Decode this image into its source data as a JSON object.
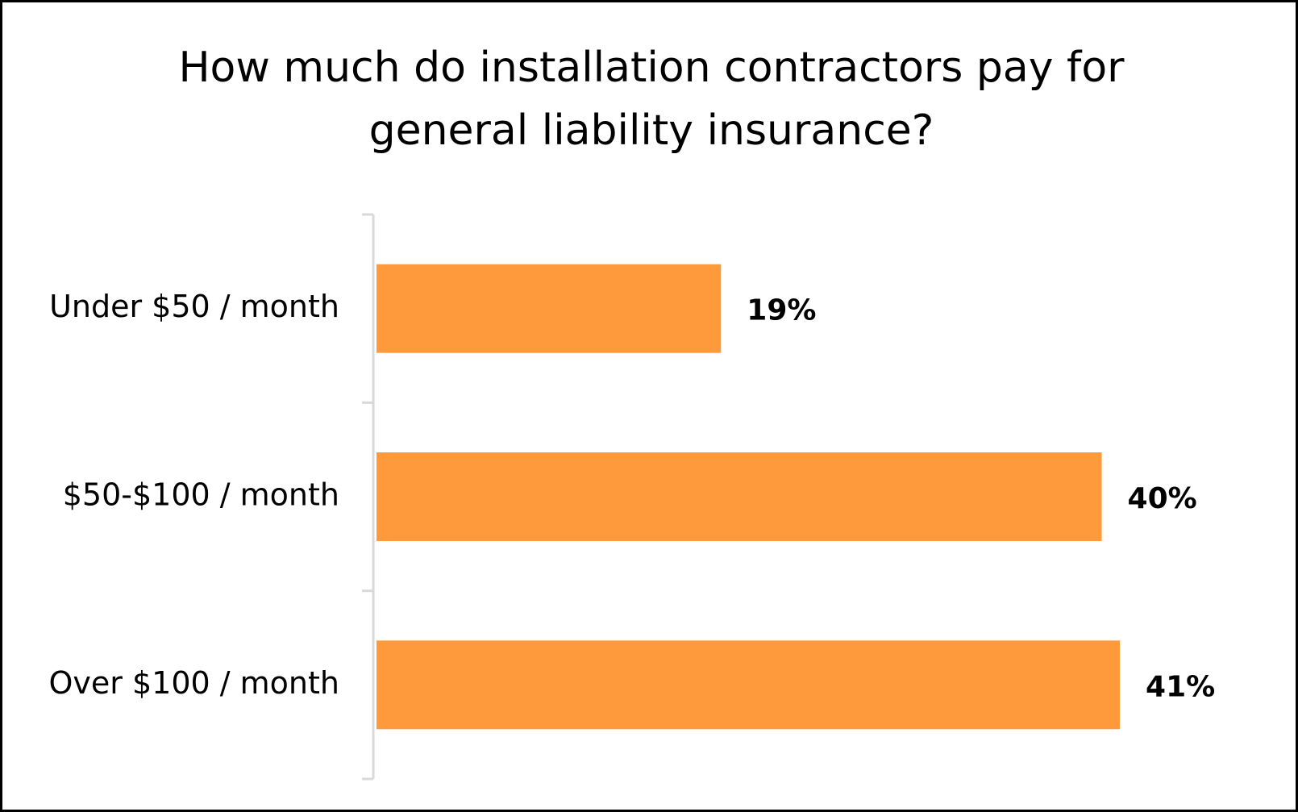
{
  "chart_data": {
    "type": "bar",
    "orientation": "horizontal",
    "title_lines": [
      "How much do installation contractors pay for",
      "general liability insurance?"
    ],
    "categories": [
      "Under $50 / month",
      "$50-$100 / month",
      "Over $100 / month"
    ],
    "values": [
      19,
      40,
      41
    ],
    "value_labels": [
      "19%",
      "40%",
      "41%"
    ],
    "xlim": [
      0,
      45
    ],
    "grid": false,
    "legend": "none",
    "bar_color": "#FF9A3C",
    "axis_color": "#D9D9D9"
  }
}
